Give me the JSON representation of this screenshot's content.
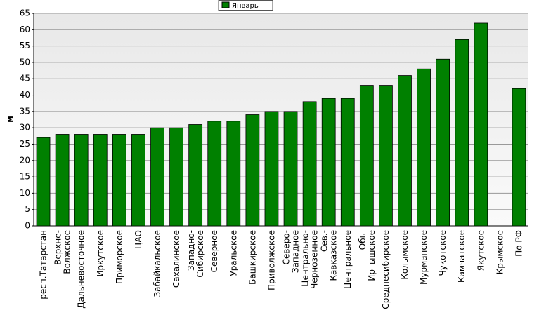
{
  "chart_data": {
    "type": "bar",
    "y_label": "м",
    "legend_position": "top",
    "series": [
      {
        "name": "Январь",
        "color": "#008000",
        "values": [
          27,
          28,
          28,
          28,
          28,
          28,
          30,
          30,
          31,
          32,
          32,
          34,
          35,
          35,
          38,
          39,
          39,
          43,
          43,
          46,
          48,
          51,
          57,
          62,
          null,
          42
        ]
      }
    ],
    "categories": [
      "респ.Татарстан",
      "Верхне-Волжское",
      "Дальневосточное",
      "Иркутское",
      "Приморское",
      "ЦАО",
      "Забайкальское",
      "Сахалинское",
      "Западно-Сибирское",
      "Северное",
      "Уральское",
      "Башкирское",
      "Приволжское",
      "Северо-Западное",
      "Центрально-Черноземное",
      "Сев.-Кавказское",
      "Центральное",
      "Обь-Иртышское",
      "Среднесибирское",
      "Колымское",
      "Мурманское",
      "Чукотское",
      "Камчатское",
      "Якутское",
      "Крымское",
      "По РФ"
    ],
    "ylim": [
      0,
      65
    ],
    "yticks": [
      0,
      5,
      10,
      15,
      20,
      25,
      30,
      35,
      40,
      45,
      50,
      55,
      60,
      65
    ],
    "grid": true
  }
}
